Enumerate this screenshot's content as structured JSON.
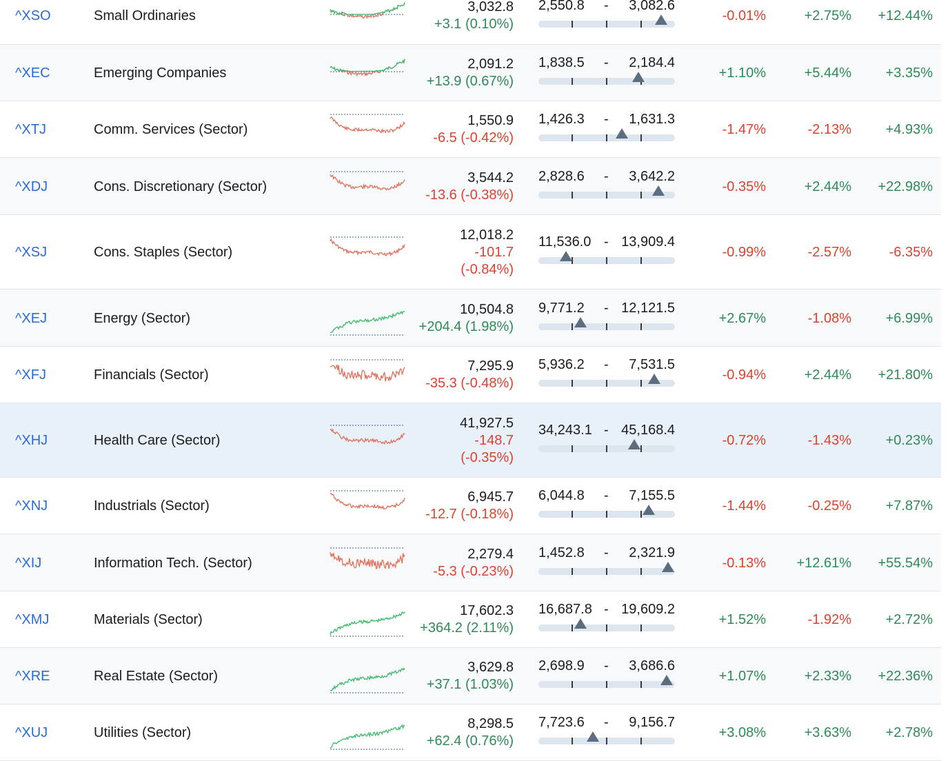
{
  "colors": {
    "positive": "#2e8b57",
    "negative": "#d9432f",
    "symbol": "#2a6bd1",
    "spark_up": "#3cba6b",
    "spark_down": "#e0705a",
    "baseline": "#3a5a9a"
  },
  "rows": [
    {
      "symbol": "^XSO",
      "name": "Small Ordinaries",
      "price": "3,032.8",
      "change_lines": [
        "+3.1 (0.10%)"
      ],
      "dir": "pos",
      "low": "2,550.8",
      "high": "3,082.6",
      "range_position": 0.9,
      "p1": "-0.01%",
      "p1dir": "neg",
      "p2": "+2.75%",
      "p2dir": "pos",
      "p3": "+12.44%",
      "p3dir": "pos",
      "spark": "mixed",
      "seed": 3
    },
    {
      "symbol": "^XEC",
      "name": "Emerging Companies",
      "price": "2,091.2",
      "change_lines": [
        "+13.9 (0.67%)"
      ],
      "dir": "pos",
      "low": "1,838.5",
      "high": "2,184.4",
      "range_position": 0.73,
      "p1": "+1.10%",
      "p1dir": "pos",
      "p2": "+5.44%",
      "p2dir": "pos",
      "p3": "+3.35%",
      "p3dir": "pos",
      "spark": "mixed",
      "seed": 7
    },
    {
      "symbol": "^XTJ",
      "name": "Comm. Services (Sector)",
      "price": "1,550.9",
      "change_lines": [
        "-6.5 (-0.42%)"
      ],
      "dir": "neg",
      "low": "1,426.3",
      "high": "1,631.3",
      "range_position": 0.61,
      "p1": "-1.47%",
      "p1dir": "neg",
      "p2": "-2.13%",
      "p2dir": "neg",
      "p3": "+4.93%",
      "p3dir": "pos",
      "spark": "down",
      "seed": 11
    },
    {
      "symbol": "^XDJ",
      "name": "Cons. Discretionary (Sector)",
      "price": "3,544.2",
      "change_lines": [
        "-13.6 (-0.38%)"
      ],
      "dir": "neg",
      "low": "2,828.6",
      "high": "3,642.2",
      "range_position": 0.88,
      "p1": "-0.35%",
      "p1dir": "neg",
      "p2": "+2.44%",
      "p2dir": "pos",
      "p3": "+22.98%",
      "p3dir": "pos",
      "spark": "down",
      "seed": 13
    },
    {
      "symbol": "^XSJ",
      "name": "Cons. Staples (Sector)",
      "price": "12,018.2",
      "change_lines": [
        "-101.7",
        "(-0.84%)"
      ],
      "dir": "neg",
      "low": "11,536.0",
      "high": "13,909.4",
      "range_position": 0.2,
      "p1": "-0.99%",
      "p1dir": "neg",
      "p2": "-2.57%",
      "p2dir": "neg",
      "p3": "-6.35%",
      "p3dir": "neg",
      "spark": "down",
      "seed": 17
    },
    {
      "symbol": "^XEJ",
      "name": "Energy (Sector)",
      "price": "10,504.8",
      "change_lines": [
        "+204.4 (1.98%)"
      ],
      "dir": "pos",
      "low": "9,771.2",
      "high": "12,121.5",
      "range_position": 0.31,
      "p1": "+2.67%",
      "p1dir": "pos",
      "p2": "-1.08%",
      "p2dir": "neg",
      "p3": "+6.99%",
      "p3dir": "pos",
      "spark": "up",
      "seed": 19
    },
    {
      "symbol": "^XFJ",
      "name": "Financials (Sector)",
      "price": "7,295.9",
      "change_lines": [
        "-35.3 (-0.48%)"
      ],
      "dir": "neg",
      "low": "5,936.2",
      "high": "7,531.5",
      "range_position": 0.85,
      "p1": "-0.94%",
      "p1dir": "neg",
      "p2": "+2.44%",
      "p2dir": "pos",
      "p3": "+21.80%",
      "p3dir": "pos",
      "spark": "down",
      "seed": 23
    },
    {
      "symbol": "^XHJ",
      "name": "Health Care (Sector)",
      "price": "41,927.5",
      "change_lines": [
        "-148.7",
        "(-0.35%)"
      ],
      "dir": "neg",
      "low": "34,243.1",
      "high": "45,168.4",
      "range_position": 0.7,
      "p1": "-0.72%",
      "p1dir": "neg",
      "p2": "-1.43%",
      "p2dir": "neg",
      "p3": "+0.23%",
      "p3dir": "pos",
      "spark": "down",
      "seed": 29
    },
    {
      "symbol": "^XNJ",
      "name": "Industrials (Sector)",
      "price": "6,945.7",
      "change_lines": [
        "-12.7 (-0.18%)"
      ],
      "dir": "neg",
      "low": "6,044.8",
      "high": "7,155.5",
      "range_position": 0.81,
      "p1": "-1.44%",
      "p1dir": "neg",
      "p2": "-0.25%",
      "p2dir": "neg",
      "p3": "+7.87%",
      "p3dir": "pos",
      "spark": "down",
      "seed": 31
    },
    {
      "symbol": "^XIJ",
      "name": "Information Tech. (Sector)",
      "price": "2,279.4",
      "change_lines": [
        "-5.3 (-0.23%)"
      ],
      "dir": "neg",
      "low": "1,452.8",
      "high": "2,321.9",
      "range_position": 0.95,
      "p1": "-0.13%",
      "p1dir": "neg",
      "p2": "+12.61%",
      "p2dir": "pos",
      "p3": "+55.54%",
      "p3dir": "pos",
      "spark": "down",
      "seed": 37
    },
    {
      "symbol": "^XMJ",
      "name": "Materials (Sector)",
      "price": "17,602.3",
      "change_lines": [
        "+364.2 (2.11%)"
      ],
      "dir": "pos",
      "low": "16,687.8",
      "high": "19,609.2",
      "range_position": 0.31,
      "p1": "+1.52%",
      "p1dir": "pos",
      "p2": "-1.92%",
      "p2dir": "neg",
      "p3": "+2.72%",
      "p3dir": "pos",
      "spark": "up",
      "seed": 41
    },
    {
      "symbol": "^XRE",
      "name": "Real Estate (Sector)",
      "price": "3,629.8",
      "change_lines": [
        "+37.1 (1.03%)"
      ],
      "dir": "pos",
      "low": "2,698.9",
      "high": "3,686.6",
      "range_position": 0.94,
      "p1": "+1.07%",
      "p1dir": "pos",
      "p2": "+2.33%",
      "p2dir": "pos",
      "p3": "+22.36%",
      "p3dir": "pos",
      "spark": "up",
      "seed": 43
    },
    {
      "symbol": "^XUJ",
      "name": "Utilities (Sector)",
      "price": "8,298.5",
      "change_lines": [
        "+62.4 (0.76%)"
      ],
      "dir": "pos",
      "low": "7,723.6",
      "high": "9,156.7",
      "range_position": 0.4,
      "p1": "+3.08%",
      "p1dir": "pos",
      "p2": "+3.63%",
      "p2dir": "pos",
      "p3": "+2.78%",
      "p3dir": "pos",
      "spark": "up",
      "seed": 47
    }
  ]
}
